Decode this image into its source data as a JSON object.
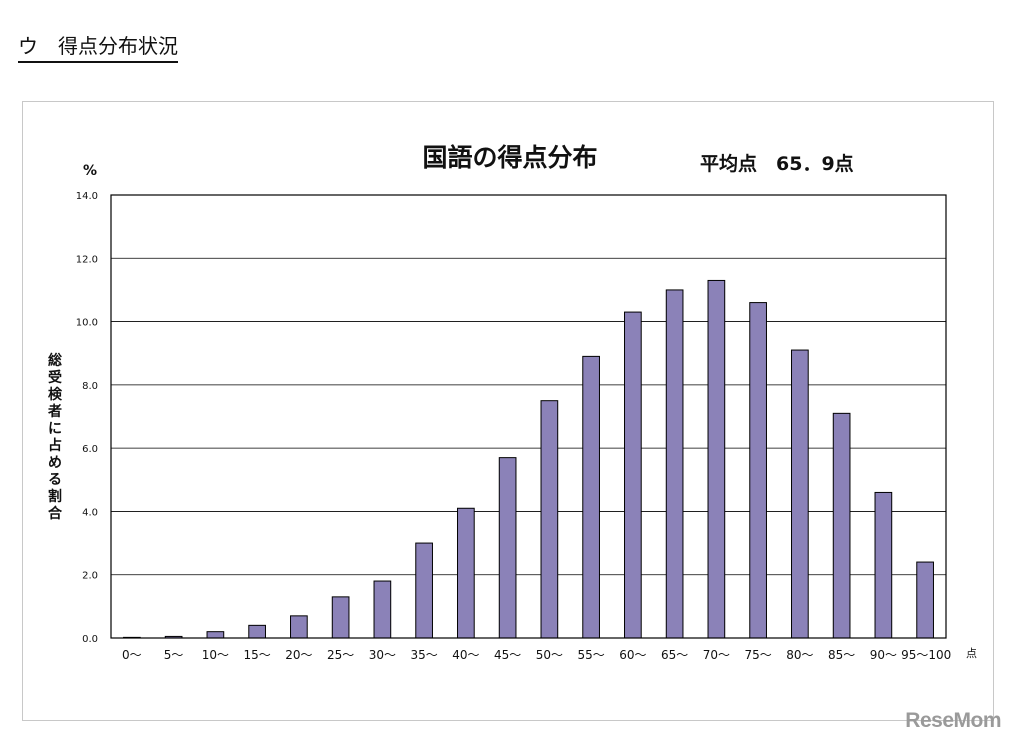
{
  "section_heading": "ウ　得点分布状況",
  "watermark": "ReseMom",
  "chart_data": {
    "type": "bar",
    "title": "国語の得点分布",
    "annotation": "平均点　65．9点",
    "ylabel": "総受検者に占める割合",
    "yunit": "%",
    "xunit": "点",
    "ylim": [
      0,
      14
    ],
    "yticks": [
      "0.0",
      "2.0",
      "4.0",
      "6.0",
      "8.0",
      "10.0",
      "12.0",
      "14.0"
    ],
    "grid": true,
    "bar_color": "#8b82b8",
    "categories": [
      "0～",
      "5～",
      "10～",
      "15～",
      "20～",
      "25～",
      "30～",
      "35～",
      "40～",
      "45～",
      "50～",
      "55～",
      "60～",
      "65～",
      "70～",
      "75～",
      "80～",
      "85～",
      "90～",
      "95～100"
    ],
    "values": [
      0.02,
      0.05,
      0.2,
      0.4,
      0.7,
      1.3,
      1.8,
      3.0,
      4.1,
      5.7,
      7.5,
      8.9,
      10.3,
      11.0,
      11.3,
      10.6,
      9.1,
      7.1,
      4.6,
      2.4
    ]
  }
}
